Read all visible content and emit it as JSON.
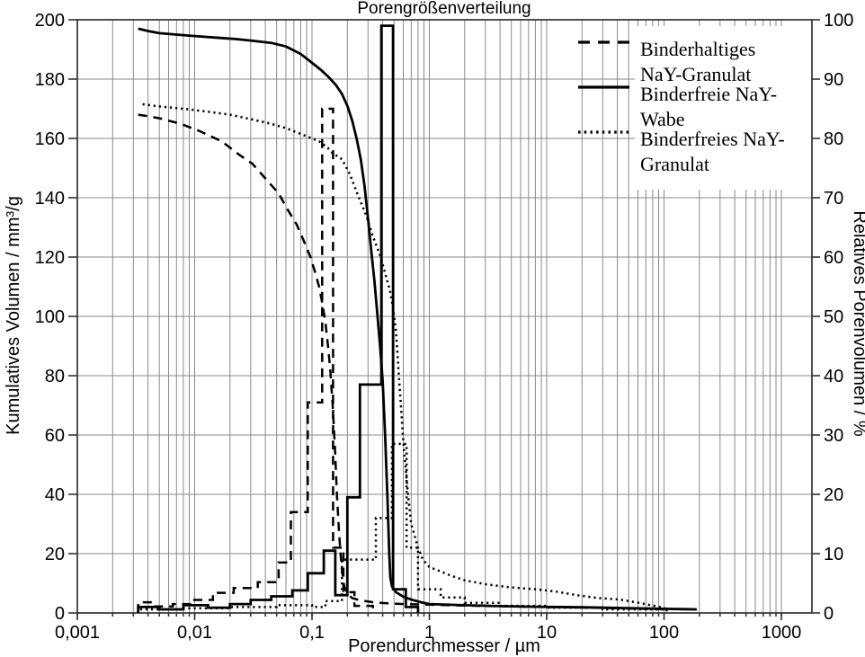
{
  "chart_data": {
    "type": "combo-line-histogram",
    "title": "Porengrößenverteilung",
    "x_axis": {
      "label": "Porendurchmesser / µm",
      "scale": "log",
      "min": 0.001,
      "max": 1824,
      "ticks": [
        {
          "value": 0.001,
          "label": "0,001"
        },
        {
          "value": 0.01,
          "label": "0,01"
        },
        {
          "value": 0.1,
          "label": "0,1"
        },
        {
          "value": 1,
          "label": "1"
        },
        {
          "value": 10,
          "label": "10"
        },
        {
          "value": 100,
          "label": "100"
        },
        {
          "value": 1000,
          "label": "1000"
        }
      ]
    },
    "left_axis": {
      "label": "Kumulatives Volumen / mm³/g",
      "min": 0,
      "max": 200,
      "ticks": [
        "0",
        "20",
        "40",
        "60",
        "80",
        "100",
        "120",
        "140",
        "160",
        "180",
        "200"
      ]
    },
    "right_axis": {
      "label": "Relatives Porenvolumen / %",
      "min": 0,
      "max": 100,
      "ticks": [
        "0",
        "10",
        "20",
        "30",
        "40",
        "50",
        "60",
        "70",
        "80",
        "90",
        "100"
      ]
    },
    "grid": {
      "vertical": "log-minor-and-major",
      "horizontal_step": 20
    },
    "colors": {
      "line": "#000000",
      "grid": "#8a8a8a",
      "frame": "#333333",
      "background": "#ffffff"
    },
    "line_styles": {
      "dashed": "10 7",
      "dotted": "2.2 3.9",
      "legend_dashed": "13 9",
      "legend_dotted": "2.5 4.2"
    },
    "legend": {
      "position": "top-right",
      "entries": [
        {
          "line1": "Binderhaltiges",
          "line2": "NaY-Granulat"
        },
        {
          "line1": "Binderfreie NaY-",
          "line2": "Wabe"
        },
        {
          "line1": "Binderfreies NaY-",
          "line2": "Granulat"
        }
      ]
    },
    "series": [
      {
        "id": "binderhaltiges-nay-granulat",
        "name": "Binderhaltiges NaY-Granulat",
        "style": "dashed",
        "cumulative_mm3g": [
          [
            0.0033,
            168
          ],
          [
            0.004,
            167.5
          ],
          [
            0.005,
            166.8
          ],
          [
            0.0075,
            165
          ],
          [
            0.011,
            162.5
          ],
          [
            0.017,
            159
          ],
          [
            0.024,
            154.5
          ],
          [
            0.031,
            151.5
          ],
          [
            0.04,
            146.5
          ],
          [
            0.052,
            141.5
          ],
          [
            0.062,
            136
          ],
          [
            0.074,
            131
          ],
          [
            0.085,
            125.5
          ],
          [
            0.097,
            120
          ],
          [
            0.106,
            115
          ],
          [
            0.115,
            110
          ],
          [
            0.123,
            104
          ],
          [
            0.13,
            98
          ],
          [
            0.137,
            90
          ],
          [
            0.143,
            82
          ],
          [
            0.15,
            70
          ],
          [
            0.157,
            55
          ],
          [
            0.163,
            40
          ],
          [
            0.17,
            27
          ],
          [
            0.178,
            16
          ],
          [
            0.188,
            9
          ],
          [
            0.2,
            6.5
          ],
          [
            0.22,
            5
          ],
          [
            0.26,
            4.2
          ],
          [
            0.35,
            3.5
          ],
          [
            0.6,
            3
          ],
          [
            1,
            2.8
          ],
          [
            2,
            2.5
          ],
          [
            5,
            2.2
          ],
          [
            10,
            2
          ],
          [
            25,
            1.8
          ],
          [
            50,
            1.5
          ],
          [
            110,
            1.2
          ]
        ],
        "histogram_pct": [
          [
            0.0033,
            1.8
          ],
          [
            0.0045,
            1.1
          ],
          [
            0.0065,
            1.5
          ],
          [
            0.0097,
            2.2
          ],
          [
            0.0143,
            3.4
          ],
          [
            0.0215,
            4.2
          ],
          [
            0.0345,
            5.2
          ],
          [
            0.052,
            8.5
          ],
          [
            0.066,
            17
          ],
          [
            0.092,
            35.5
          ],
          [
            0.122,
            85
          ],
          [
            0.151,
            11
          ],
          [
            0.185,
            3.5
          ],
          [
            0.23,
            1.2
          ],
          [
            0.33,
            0
          ]
        ]
      },
      {
        "id": "binderfreie-nay-wabe",
        "name": "Binderfreie NaY-Wabe",
        "style": "solid",
        "cumulative_mm3g": [
          [
            0.0033,
            197
          ],
          [
            0.004,
            196.2
          ],
          [
            0.005,
            195.5
          ],
          [
            0.007,
            195
          ],
          [
            0.01,
            194.5
          ],
          [
            0.015,
            194
          ],
          [
            0.022,
            193.5
          ],
          [
            0.03,
            193
          ],
          [
            0.045,
            192.2
          ],
          [
            0.06,
            191
          ],
          [
            0.08,
            188.5
          ],
          [
            0.1,
            185.5
          ],
          [
            0.12,
            183
          ],
          [
            0.14,
            180.5
          ],
          [
            0.16,
            178
          ],
          [
            0.18,
            175
          ],
          [
            0.2,
            171
          ],
          [
            0.22,
            166
          ],
          [
            0.24,
            160
          ],
          [
            0.26,
            153
          ],
          [
            0.28,
            144
          ],
          [
            0.3,
            133
          ],
          [
            0.32,
            122
          ],
          [
            0.34,
            112
          ],
          [
            0.36,
            101
          ],
          [
            0.38,
            90
          ],
          [
            0.4,
            78
          ],
          [
            0.42,
            60
          ],
          [
            0.44,
            38
          ],
          [
            0.455,
            20
          ],
          [
            0.465,
            12
          ],
          [
            0.48,
            9
          ],
          [
            0.52,
            7
          ],
          [
            0.6,
            5.5
          ],
          [
            0.7,
            4.5
          ],
          [
            0.85,
            3.6
          ],
          [
            1,
            3
          ],
          [
            2,
            2.6
          ],
          [
            4,
            2.3
          ],
          [
            8,
            2.1
          ],
          [
            20,
            1.9
          ],
          [
            50,
            1.6
          ],
          [
            100,
            1.4
          ],
          [
            190,
            1.2
          ]
        ],
        "histogram_pct": [
          [
            0.0033,
            1
          ],
          [
            0.005,
            0.6
          ],
          [
            0.008,
            1.3
          ],
          [
            0.013,
            0.9
          ],
          [
            0.02,
            1.5
          ],
          [
            0.03,
            2.2
          ],
          [
            0.045,
            2.8
          ],
          [
            0.068,
            3.8
          ],
          [
            0.092,
            6.7
          ],
          [
            0.126,
            10.5
          ],
          [
            0.158,
            3
          ],
          [
            0.2,
            19.5
          ],
          [
            0.256,
            38.5
          ],
          [
            0.39,
            99
          ],
          [
            0.49,
            4
          ],
          [
            0.63,
            1
          ],
          [
            0.8,
            0
          ]
        ]
      },
      {
        "id": "binderfreies-nay-granulat",
        "name": "Binderfreies NaY-Granulat",
        "style": "dotted",
        "cumulative_mm3g": [
          [
            0.0036,
            171.5
          ],
          [
            0.005,
            170.8
          ],
          [
            0.008,
            170
          ],
          [
            0.013,
            169
          ],
          [
            0.02,
            168
          ],
          [
            0.03,
            166.5
          ],
          [
            0.044,
            165
          ],
          [
            0.06,
            163.5
          ],
          [
            0.08,
            161.5
          ],
          [
            0.1,
            160
          ],
          [
            0.115,
            159
          ],
          [
            0.135,
            157
          ],
          [
            0.15,
            155
          ],
          [
            0.18,
            153
          ],
          [
            0.21,
            148
          ],
          [
            0.24,
            142
          ],
          [
            0.29,
            134
          ],
          [
            0.33,
            127
          ],
          [
            0.385,
            120
          ],
          [
            0.43,
            113
          ],
          [
            0.46,
            109
          ],
          [
            0.49,
            103
          ],
          [
            0.52,
            95
          ],
          [
            0.55,
            80
          ],
          [
            0.6,
            58
          ],
          [
            0.65,
            42
          ],
          [
            0.7,
            30
          ],
          [
            0.75,
            26
          ],
          [
            0.8,
            22
          ],
          [
            0.88,
            18
          ],
          [
            1,
            15.5
          ],
          [
            1.25,
            14
          ],
          [
            1.5,
            12.7
          ],
          [
            2,
            11
          ],
          [
            3,
            9.7
          ],
          [
            5,
            8.6
          ],
          [
            8,
            8
          ],
          [
            12,
            7.2
          ],
          [
            18,
            6
          ],
          [
            28,
            5
          ],
          [
            42,
            4.5
          ],
          [
            60,
            3.5
          ],
          [
            85,
            2.3
          ],
          [
            110,
            1.2
          ]
        ],
        "histogram_pct": [
          [
            0.0033,
            0.6
          ],
          [
            0.008,
            0.8
          ],
          [
            0.02,
            1
          ],
          [
            0.05,
            1.3
          ],
          [
            0.1,
            1
          ],
          [
            0.13,
            2
          ],
          [
            0.18,
            9
          ],
          [
            0.35,
            16
          ],
          [
            0.48,
            28.5
          ],
          [
            0.64,
            11
          ],
          [
            0.8,
            4
          ],
          [
            1.25,
            2.6
          ],
          [
            2,
            1.7
          ],
          [
            4,
            1.2
          ],
          [
            10,
            0.9
          ],
          [
            30,
            0.6
          ],
          [
            105,
            0
          ]
        ]
      }
    ]
  }
}
